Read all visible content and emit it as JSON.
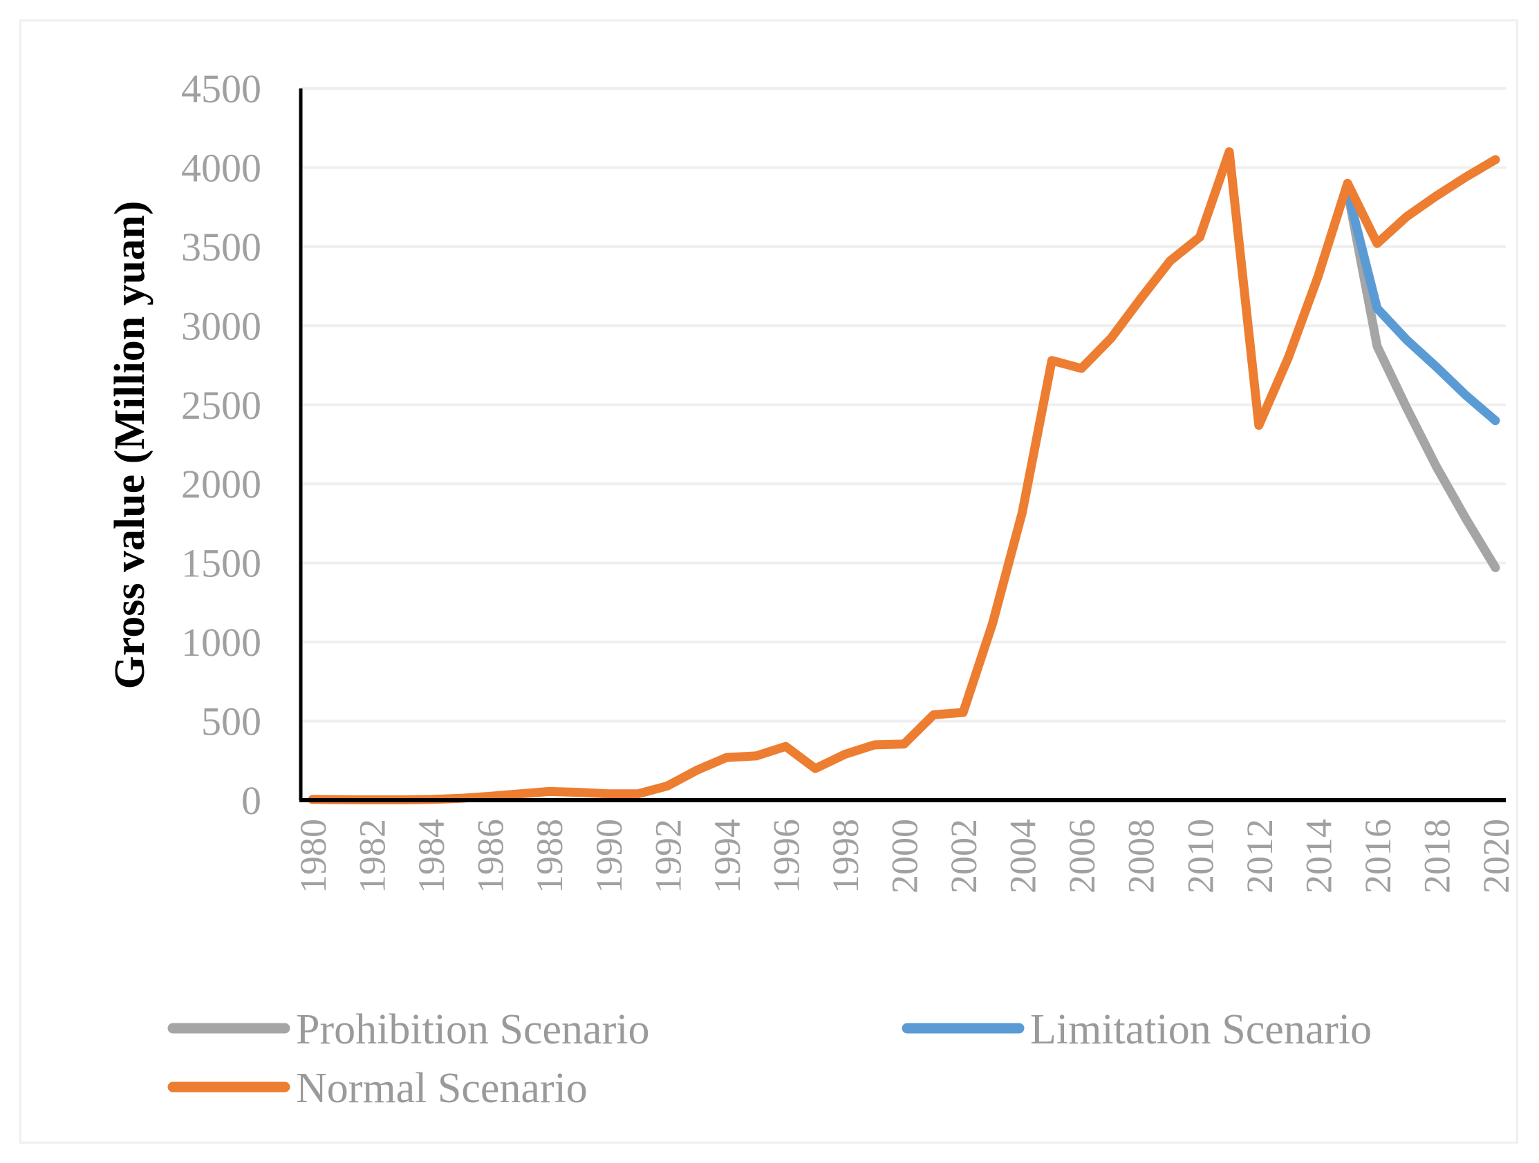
{
  "chart_data": {
    "type": "line",
    "title": "",
    "xlabel": "",
    "ylabel": "Gross value (Million yuan)",
    "ylim": [
      0,
      4500
    ],
    "yticks": [
      0,
      500,
      1000,
      1500,
      2000,
      2500,
      3000,
      3500,
      4000,
      4500
    ],
    "ytick_labels": [
      "0",
      "500",
      "1000",
      "1500",
      "2000",
      "2500",
      "3000",
      "3500",
      "4000",
      "4500"
    ],
    "xlim": [
      1980,
      2020
    ],
    "xtick_labels": [
      "1980",
      "1982",
      "1984",
      "1986",
      "1988",
      "1990",
      "1992",
      "1994",
      "1996",
      "1998",
      "2000",
      "2002",
      "2004",
      "2006",
      "2008",
      "2010",
      "2012",
      "2014",
      "2016",
      "2018",
      "2020"
    ],
    "grid": "horizontal",
    "legend_position": "bottom",
    "series": [
      {
        "name": "Prohibition Scenario",
        "color": "#a5a5a5",
        "x": [
          2015,
          2016,
          2017,
          2018,
          2019,
          2020
        ],
        "values": [
          3850,
          2870,
          2480,
          2110,
          1780,
          1470
        ]
      },
      {
        "name": "Limitation Scenario",
        "color": "#5b9bd5",
        "x": [
          2015,
          2016,
          2017,
          2018,
          2019,
          2020
        ],
        "values": [
          3850,
          3110,
          2910,
          2740,
          2560,
          2400
        ]
      },
      {
        "name": "Normal Scenario",
        "color": "#ed7d31",
        "x": [
          1980,
          1981,
          1982,
          1983,
          1984,
          1985,
          1986,
          1987,
          1988,
          1989,
          1990,
          1991,
          1992,
          1993,
          1994,
          1995,
          1996,
          1997,
          1998,
          1999,
          2000,
          2001,
          2002,
          2003,
          2004,
          2005,
          2006,
          2007,
          2008,
          2009,
          2010,
          2011,
          2012,
          2013,
          2014,
          2015,
          2016,
          2017,
          2018,
          2019,
          2020
        ],
        "values": [
          5,
          3,
          2,
          2,
          5,
          12,
          25,
          40,
          55,
          50,
          40,
          40,
          90,
          190,
          270,
          280,
          340,
          200,
          290,
          350,
          355,
          540,
          555,
          1120,
          1820,
          2780,
          2730,
          2920,
          3170,
          3410,
          3560,
          4100,
          2370,
          2800,
          3310,
          3900,
          3520,
          3690,
          3820,
          3940,
          4050
        ]
      }
    ]
  }
}
